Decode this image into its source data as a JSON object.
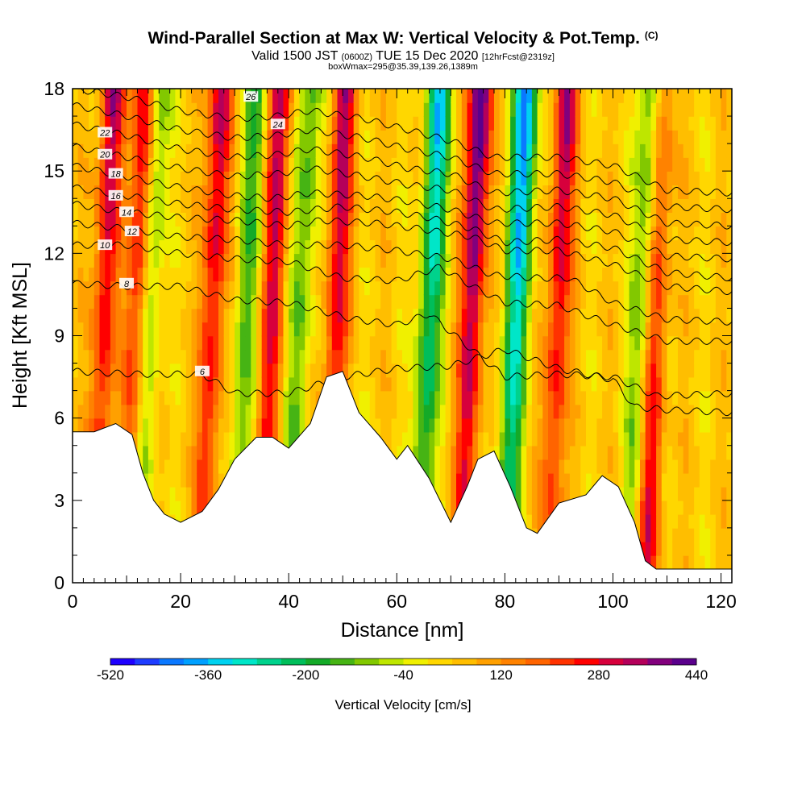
{
  "chart_data": {
    "type": "heatmap",
    "title": "Wind-Parallel Section at Max W: Vertical Velocity & Pot.Temp.",
    "title_mark": "(C)",
    "subtitle_prefix": "Valid 1500 JST",
    "subtitle_small1": "(0600Z)",
    "subtitle_main": "TUE 15 Dec 2020",
    "subtitle_small2": "[12hrFcst@2319z]",
    "subtitle2": "boxWmax=295@35.39,139.26,1389m",
    "xlabel": "Distance [nm]",
    "ylabel": "Height [Kft MSL]",
    "xlim": [
      0,
      122
    ],
    "ylim": [
      0,
      18
    ],
    "xticks": [
      0,
      20,
      40,
      60,
      80,
      100,
      120
    ],
    "yticks": [
      0,
      3,
      6,
      9,
      12,
      15,
      18
    ],
    "colorbar": {
      "label": "Vertical Velocity [cm/s]",
      "ticks": [
        -520,
        -360,
        -200,
        -40,
        120,
        280,
        440
      ],
      "range": [
        -520,
        440
      ],
      "colors": [
        "#1e00ff",
        "#1e3cff",
        "#0a78ff",
        "#00a0ff",
        "#00d2f0",
        "#00e6c8",
        "#00d28c",
        "#00be5a",
        "#14aa28",
        "#46b414",
        "#82c800",
        "#bee600",
        "#f0f000",
        "#ffd700",
        "#ffbe00",
        "#ffa000",
        "#ff8200",
        "#ff6400",
        "#ff3200",
        "#ff0000",
        "#d7003c",
        "#b4005a",
        "#82007d",
        "#5a008c"
      ]
    },
    "updraft_cores_nm": [
      4,
      10,
      24,
      35,
      47,
      72,
      88,
      106
    ],
    "downdraft_cores_nm": [
      12,
      30,
      40,
      64,
      80,
      103
    ],
    "terrain_kft": [
      [
        0,
        5.5
      ],
      [
        4,
        5.5
      ],
      [
        8,
        5.8
      ],
      [
        11,
        5.4
      ],
      [
        13,
        4
      ],
      [
        15,
        3
      ],
      [
        17,
        2.5
      ],
      [
        20,
        2.2
      ],
      [
        24,
        2.6
      ],
      [
        27,
        3.4
      ],
      [
        30,
        4.5
      ],
      [
        34,
        5.3
      ],
      [
        37,
        5.3
      ],
      [
        40,
        4.9
      ],
      [
        44,
        5.8
      ],
      [
        47,
        7.5
      ],
      [
        50,
        7.7
      ],
      [
        53,
        6.2
      ],
      [
        57,
        5.3
      ],
      [
        60,
        4.5
      ],
      [
        62,
        5
      ],
      [
        66,
        3.8
      ],
      [
        70,
        2.2
      ],
      [
        73,
        3.5
      ],
      [
        75,
        4.5
      ],
      [
        78,
        4.8
      ],
      [
        81,
        3.5
      ],
      [
        84,
        2
      ],
      [
        86,
        1.8
      ],
      [
        90,
        2.9
      ],
      [
        95,
        3.2
      ],
      [
        98,
        3.9
      ],
      [
        101,
        3.5
      ],
      [
        104,
        2.2
      ],
      [
        106,
        0.8
      ],
      [
        108,
        0.5
      ],
      [
        112,
        0.5
      ],
      [
        122,
        0.5
      ]
    ],
    "isentropes": [
      {
        "label": "6",
        "label_at": [
          24,
          7.7
        ],
        "points": [
          [
            0,
            7.7
          ],
          [
            12,
            7.6
          ],
          [
            24,
            7.6
          ],
          [
            30,
            6.9
          ],
          [
            40,
            6.9
          ],
          [
            50,
            7.5
          ],
          [
            60,
            7.8
          ],
          [
            70,
            7.9
          ],
          [
            80,
            8.5
          ],
          [
            90,
            7.8
          ],
          [
            100,
            7.4
          ],
          [
            104,
            6.4
          ],
          [
            110,
            6.3
          ],
          [
            122,
            6.2
          ]
        ]
      },
      {
        "label": "8",
        "label_at": [
          10,
          10.9
        ],
        "points": [
          [
            0,
            10.9
          ],
          [
            10,
            10.8
          ],
          [
            20,
            10.8
          ],
          [
            30,
            10.3
          ],
          [
            40,
            10.2
          ],
          [
            46,
            9.9
          ],
          [
            52,
            9.6
          ],
          [
            60,
            9.4
          ],
          [
            66,
            9.8
          ],
          [
            72,
            8.8
          ],
          [
            80,
            7.5
          ],
          [
            90,
            7.6
          ],
          [
            100,
            7.5
          ],
          [
            108,
            6.8
          ],
          [
            122,
            6.9
          ]
        ]
      },
      {
        "label": "10",
        "label_at": [
          6,
          12.3
        ],
        "points": [
          [
            0,
            12.3
          ],
          [
            10,
            12.3
          ],
          [
            20,
            12
          ],
          [
            30,
            11.8
          ],
          [
            40,
            11.7
          ],
          [
            50,
            11.1
          ],
          [
            60,
            11
          ],
          [
            68,
            11.5
          ],
          [
            74,
            10.8
          ],
          [
            80,
            10.2
          ],
          [
            90,
            10.1
          ],
          [
            100,
            9.4
          ],
          [
            110,
            8.8
          ],
          [
            122,
            8.8
          ]
        ]
      },
      {
        "label": "12",
        "label_at": [
          11,
          12.8
        ],
        "points": [
          [
            0,
            13.1
          ],
          [
            10,
            12.9
          ],
          [
            20,
            12.6
          ],
          [
            30,
            12.5
          ],
          [
            40,
            12.3
          ],
          [
            50,
            12.3
          ],
          [
            60,
            12.1
          ],
          [
            70,
            11.8
          ],
          [
            78,
            11.2
          ],
          [
            86,
            11.1
          ],
          [
            92,
            11.1
          ],
          [
            100,
            10.2
          ],
          [
            110,
            9.6
          ],
          [
            122,
            9.5
          ]
        ]
      },
      {
        "label": "14",
        "label_at": [
          10,
          13.5
        ],
        "points": [
          [
            0,
            13.8
          ],
          [
            10,
            13.5
          ],
          [
            20,
            13.3
          ],
          [
            30,
            13.2
          ],
          [
            40,
            13
          ],
          [
            46,
            13.2
          ],
          [
            56,
            13.1
          ],
          [
            64,
            12.9
          ],
          [
            74,
            12.6
          ],
          [
            80,
            12.1
          ],
          [
            90,
            12.1
          ],
          [
            100,
            11.6
          ],
          [
            110,
            10.8
          ],
          [
            122,
            10.6
          ]
        ]
      },
      {
        "label": "16",
        "label_at": [
          8,
          14.1
        ],
        "points": [
          [
            0,
            14.4
          ],
          [
            10,
            14.1
          ],
          [
            20,
            13.8
          ],
          [
            30,
            13.6
          ],
          [
            40,
            13.5
          ],
          [
            50,
            13.7
          ],
          [
            60,
            13.5
          ],
          [
            66,
            13.3
          ],
          [
            74,
            12.9
          ],
          [
            80,
            12.4
          ],
          [
            90,
            12.5
          ],
          [
            100,
            12.2
          ],
          [
            110,
            11.3
          ],
          [
            122,
            11.1
          ]
        ]
      },
      {
        "label": "18",
        "label_at": [
          8,
          14.9
        ],
        "points": [
          [
            0,
            15.2
          ],
          [
            10,
            14.8
          ],
          [
            20,
            14.4
          ],
          [
            30,
            14.1
          ],
          [
            37,
            14
          ],
          [
            44,
            14.2
          ],
          [
            54,
            14.1
          ],
          [
            62,
            13.9
          ],
          [
            70,
            13.6
          ],
          [
            78,
            13.1
          ],
          [
            90,
            13.1
          ],
          [
            100,
            12.8
          ],
          [
            110,
            11.9
          ],
          [
            122,
            11.8
          ]
        ]
      },
      {
        "label": "20",
        "label_at": [
          6,
          15.6
        ],
        "points": [
          [
            0,
            15.9
          ],
          [
            10,
            15.5
          ],
          [
            20,
            15.1
          ],
          [
            30,
            14.8
          ],
          [
            38,
            14.9
          ],
          [
            44,
            15.1
          ],
          [
            54,
            14.8
          ],
          [
            62,
            14.5
          ],
          [
            70,
            14.3
          ],
          [
            78,
            13.6
          ],
          [
            90,
            13.7
          ],
          [
            100,
            13.4
          ],
          [
            110,
            12.5
          ],
          [
            122,
            12.4
          ]
        ]
      },
      {
        "label": "22",
        "label_at": [
          6,
          16.4
        ],
        "points": [
          [
            0,
            16.7
          ],
          [
            10,
            16.3
          ],
          [
            20,
            15.8
          ],
          [
            30,
            15.5
          ],
          [
            38,
            15.6
          ],
          [
            44,
            15.8
          ],
          [
            54,
            15.5
          ],
          [
            62,
            15.1
          ],
          [
            70,
            14.9
          ],
          [
            78,
            14.2
          ],
          [
            90,
            14.3
          ],
          [
            100,
            14
          ],
          [
            110,
            13.1
          ],
          [
            122,
            13
          ]
        ]
      },
      {
        "label": "24",
        "label_at": [
          38,
          16.7
        ],
        "points": [
          [
            0,
            17.4
          ],
          [
            10,
            17
          ],
          [
            20,
            16.5
          ],
          [
            30,
            16.2
          ],
          [
            38,
            16.3
          ],
          [
            44,
            16.5
          ],
          [
            54,
            16.2
          ],
          [
            62,
            15.8
          ],
          [
            70,
            15.5
          ],
          [
            78,
            14.9
          ],
          [
            90,
            14.9
          ],
          [
            100,
            14.6
          ],
          [
            110,
            13.7
          ],
          [
            122,
            13.6
          ]
        ]
      },
      {
        "label": "26",
        "label_at": [
          33,
          17.7
        ],
        "points": [
          [
            0,
            18
          ],
          [
            10,
            17.7
          ],
          [
            20,
            17.2
          ],
          [
            30,
            16.9
          ],
          [
            38,
            17
          ],
          [
            44,
            17.2
          ],
          [
            54,
            16.9
          ],
          [
            62,
            16.5
          ],
          [
            70,
            16.1
          ],
          [
            78,
            15.5
          ],
          [
            90,
            15.5
          ],
          [
            100,
            15.2
          ],
          [
            110,
            14.3
          ],
          [
            122,
            14.2
          ]
        ]
      }
    ]
  }
}
